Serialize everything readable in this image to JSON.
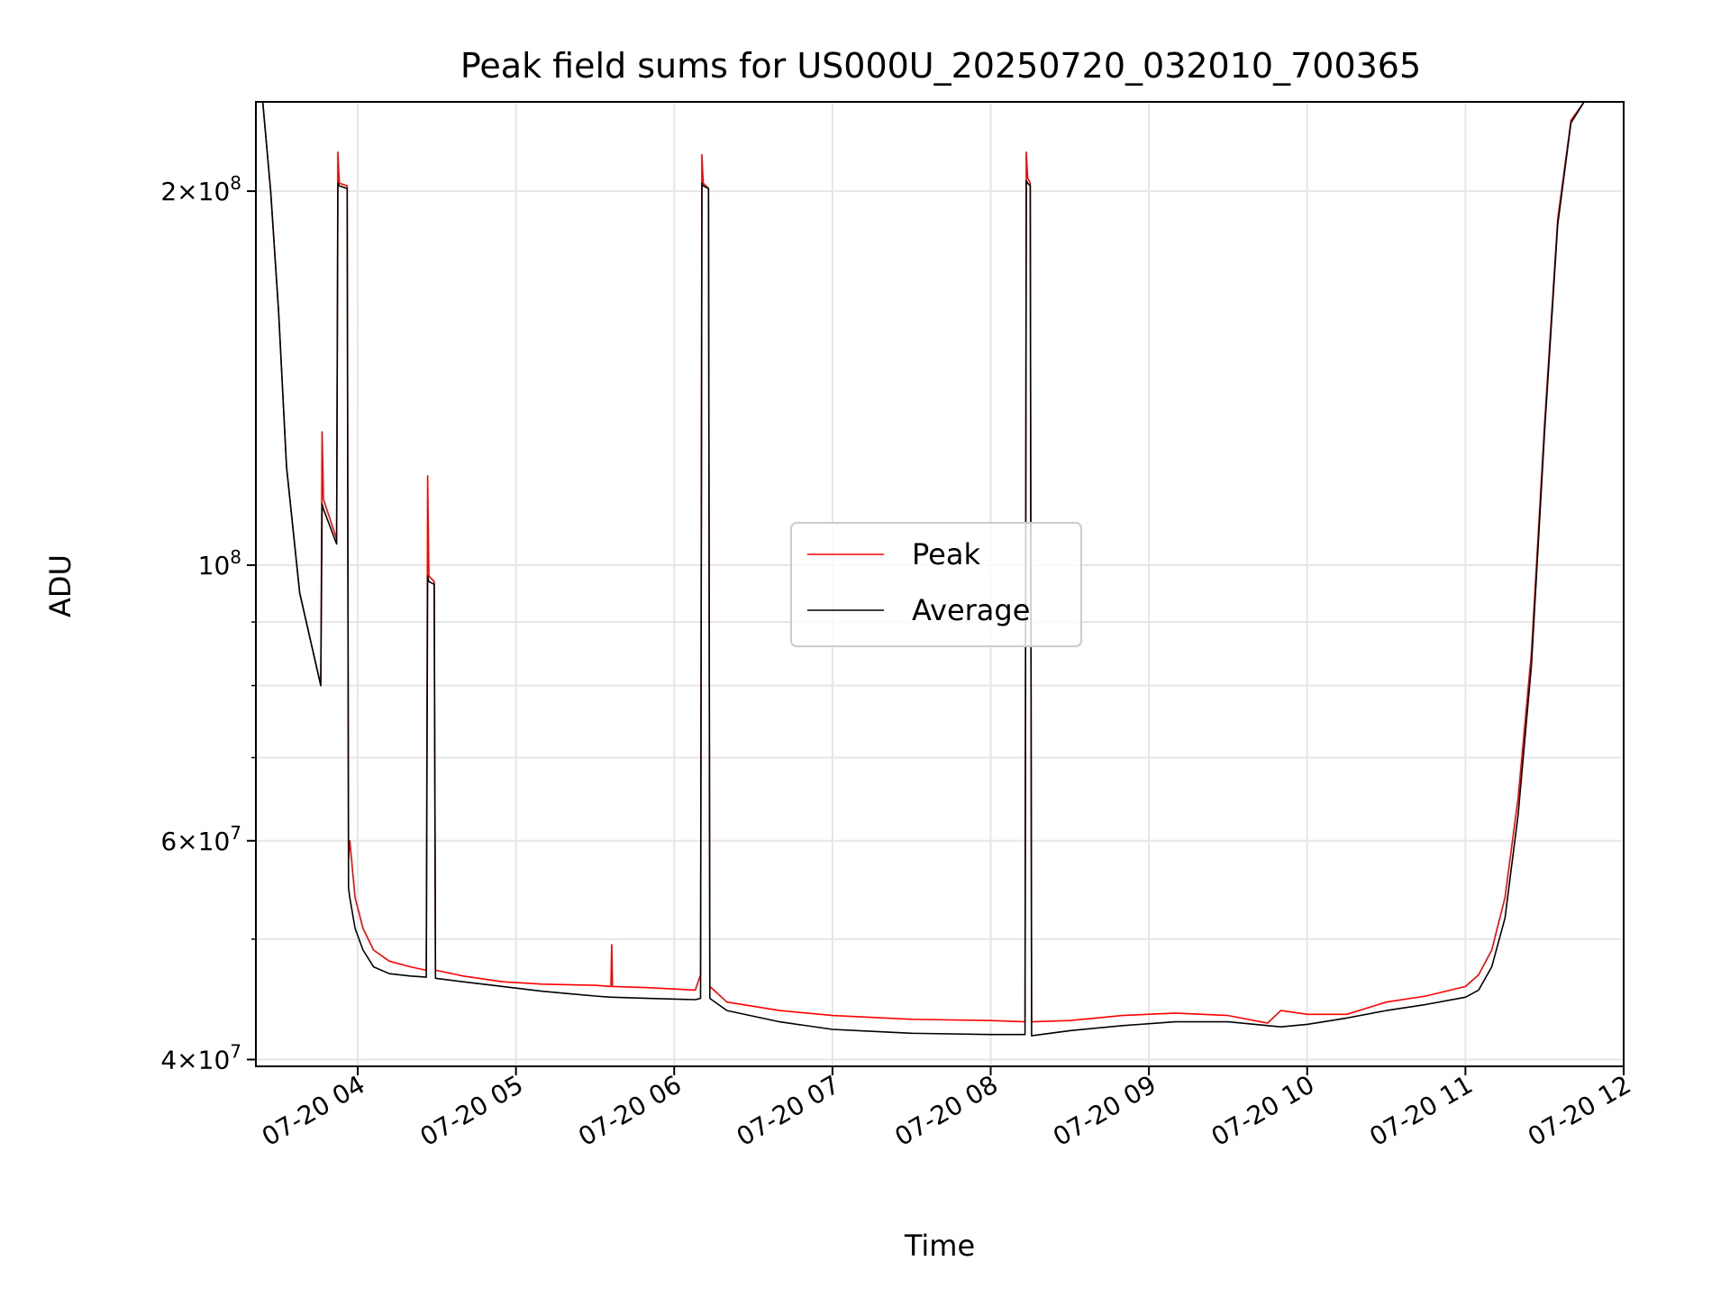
{
  "chart_data": {
    "type": "line",
    "title": "Peak field sums for US000U_20250720_032010_700365",
    "xlabel": "Time",
    "ylabel": "ADU",
    "x_scale": "time",
    "y_scale": "log",
    "xlim": [
      "07-20 03:20",
      "07-20 12:00"
    ],
    "ylim": [
      39500000,
      236000000
    ],
    "grid": true,
    "legend_position": "center",
    "x_ticks": [
      "07-20 04",
      "07-20 05",
      "07-20 06",
      "07-20 07",
      "07-20 08",
      "07-20 09",
      "07-20 10",
      "07-20 11",
      "07-20 12"
    ],
    "y_ticks": [
      {
        "value": 40000000,
        "mantissa": "4",
        "exp": "7"
      },
      {
        "value": 60000000,
        "mantissa": "6",
        "exp": "7"
      },
      {
        "value": 100000000,
        "mantissa": "",
        "exp": "8"
      },
      {
        "value": 200000000,
        "mantissa": "2",
        "exp": "8"
      }
    ],
    "series": [
      {
        "name": "Peak",
        "color": "#ff0000",
        "points": [
          [
            "03:20",
            236000000
          ],
          [
            "03:24",
            236000000
          ],
          [
            "03:27",
            200000000
          ],
          [
            "03:30",
            160000000
          ],
          [
            "03:33",
            120000000
          ],
          [
            "03:38",
            95000000
          ],
          [
            "03:46",
            80000000
          ],
          [
            "03:46.5",
            128000000
          ],
          [
            "03:47",
            113000000
          ],
          [
            "03:52",
            105000000
          ],
          [
            "03:52.5",
            215000000
          ],
          [
            "03:53",
            203000000
          ],
          [
            "03:56",
            202000000
          ],
          [
            "03:56.5",
            58000000
          ],
          [
            "03:57",
            60000000
          ],
          [
            "03:59",
            54000000
          ],
          [
            "04:02",
            51000000
          ],
          [
            "04:06",
            49000000
          ],
          [
            "04:12",
            48000000
          ],
          [
            "04:20",
            47500000
          ],
          [
            "04:26",
            47200000
          ],
          [
            "04:26.5",
            118000000
          ],
          [
            "04:27",
            98000000
          ],
          [
            "04:29",
            97000000
          ],
          [
            "04:29.5",
            47200000
          ],
          [
            "04:40",
            46700000
          ],
          [
            "04:55",
            46200000
          ],
          [
            "05:10",
            46000000
          ],
          [
            "05:30",
            45900000
          ],
          [
            "05:36",
            45800000
          ],
          [
            "05:36.3",
            49500000
          ],
          [
            "05:36.6",
            45800000
          ],
          [
            "05:50",
            45700000
          ],
          [
            "06:08",
            45500000
          ],
          [
            "06:10",
            46800000
          ],
          [
            "06:10.5",
            214000000
          ],
          [
            "06:11",
            203000000
          ],
          [
            "06:13",
            201000000
          ],
          [
            "06:13.5",
            45800000
          ],
          [
            "06:20",
            44500000
          ],
          [
            "06:40",
            43800000
          ],
          [
            "07:00",
            43400000
          ],
          [
            "07:30",
            43100000
          ],
          [
            "08:00",
            43000000
          ],
          [
            "08:13",
            42900000
          ],
          [
            "08:13.5",
            215000000
          ],
          [
            "08:14",
            205000000
          ],
          [
            "08:15",
            203000000
          ],
          [
            "08:15.5",
            42900000
          ],
          [
            "08:30",
            43000000
          ],
          [
            "08:50",
            43400000
          ],
          [
            "09:10",
            43600000
          ],
          [
            "09:30",
            43400000
          ],
          [
            "09:45",
            42800000
          ],
          [
            "09:50",
            43800000
          ],
          [
            "10:00",
            43500000
          ],
          [
            "10:15",
            43500000
          ],
          [
            "10:30",
            44500000
          ],
          [
            "10:45",
            45000000
          ],
          [
            "11:00",
            45800000
          ],
          [
            "11:05",
            46800000
          ],
          [
            "11:10",
            49000000
          ],
          [
            "11:15",
            54000000
          ],
          [
            "11:20",
            65000000
          ],
          [
            "11:25",
            85000000
          ],
          [
            "11:30",
            130000000
          ],
          [
            "11:35",
            190000000
          ],
          [
            "11:40",
            228000000
          ],
          [
            "11:45",
            236000000
          ],
          [
            "11:57",
            236000000
          ]
        ]
      },
      {
        "name": "Average",
        "color": "#000000",
        "points": [
          [
            "03:20",
            236000000
          ],
          [
            "03:24",
            236000000
          ],
          [
            "03:27",
            200000000
          ],
          [
            "03:30",
            160000000
          ],
          [
            "03:33",
            120000000
          ],
          [
            "03:38",
            95000000
          ],
          [
            "03:46",
            80000000
          ],
          [
            "03:46.5",
            112000000
          ],
          [
            "03:47",
            111000000
          ],
          [
            "03:52",
            104000000
          ],
          [
            "03:52.5",
            203000000
          ],
          [
            "03:53",
            202000000
          ],
          [
            "03:56",
            201000000
          ],
          [
            "03:56.5",
            55000000
          ],
          [
            "03:57",
            54000000
          ],
          [
            "03:59",
            51000000
          ],
          [
            "04:02",
            49000000
          ],
          [
            "04:06",
            47500000
          ],
          [
            "04:12",
            46900000
          ],
          [
            "04:20",
            46700000
          ],
          [
            "04:26",
            46600000
          ],
          [
            "04:26.5",
            98000000
          ],
          [
            "04:27",
            97000000
          ],
          [
            "04:29",
            96500000
          ],
          [
            "04:29.5",
            46500000
          ],
          [
            "04:40",
            46200000
          ],
          [
            "04:55",
            45800000
          ],
          [
            "05:10",
            45400000
          ],
          [
            "05:30",
            45000000
          ],
          [
            "05:36",
            44900000
          ],
          [
            "05:36.3",
            44900000
          ],
          [
            "05:36.6",
            44900000
          ],
          [
            "05:50",
            44800000
          ],
          [
            "06:08",
            44700000
          ],
          [
            "06:10",
            44800000
          ],
          [
            "06:10.5",
            203000000
          ],
          [
            "06:11",
            202000000
          ],
          [
            "06:13",
            201000000
          ],
          [
            "06:13.5",
            44800000
          ],
          [
            "06:20",
            43800000
          ],
          [
            "06:40",
            42900000
          ],
          [
            "07:00",
            42300000
          ],
          [
            "07:30",
            42000000
          ],
          [
            "08:00",
            41900000
          ],
          [
            "08:13",
            41900000
          ],
          [
            "08:13.5",
            204000000
          ],
          [
            "08:14",
            203000000
          ],
          [
            "08:15",
            202000000
          ],
          [
            "08:15.5",
            41800000
          ],
          [
            "08:30",
            42200000
          ],
          [
            "08:50",
            42600000
          ],
          [
            "09:10",
            42900000
          ],
          [
            "09:30",
            42900000
          ],
          [
            "09:45",
            42600000
          ],
          [
            "09:50",
            42500000
          ],
          [
            "10:00",
            42700000
          ],
          [
            "10:15",
            43200000
          ],
          [
            "10:30",
            43800000
          ],
          [
            "10:45",
            44300000
          ],
          [
            "11:00",
            44900000
          ],
          [
            "11:05",
            45500000
          ],
          [
            "11:10",
            47500000
          ],
          [
            "11:15",
            52000000
          ],
          [
            "11:20",
            63000000
          ],
          [
            "11:25",
            83000000
          ],
          [
            "11:30",
            128000000
          ],
          [
            "11:35",
            188000000
          ],
          [
            "11:40",
            227000000
          ],
          [
            "11:45",
            236000000
          ],
          [
            "11:57",
            236000000
          ]
        ]
      }
    ]
  }
}
